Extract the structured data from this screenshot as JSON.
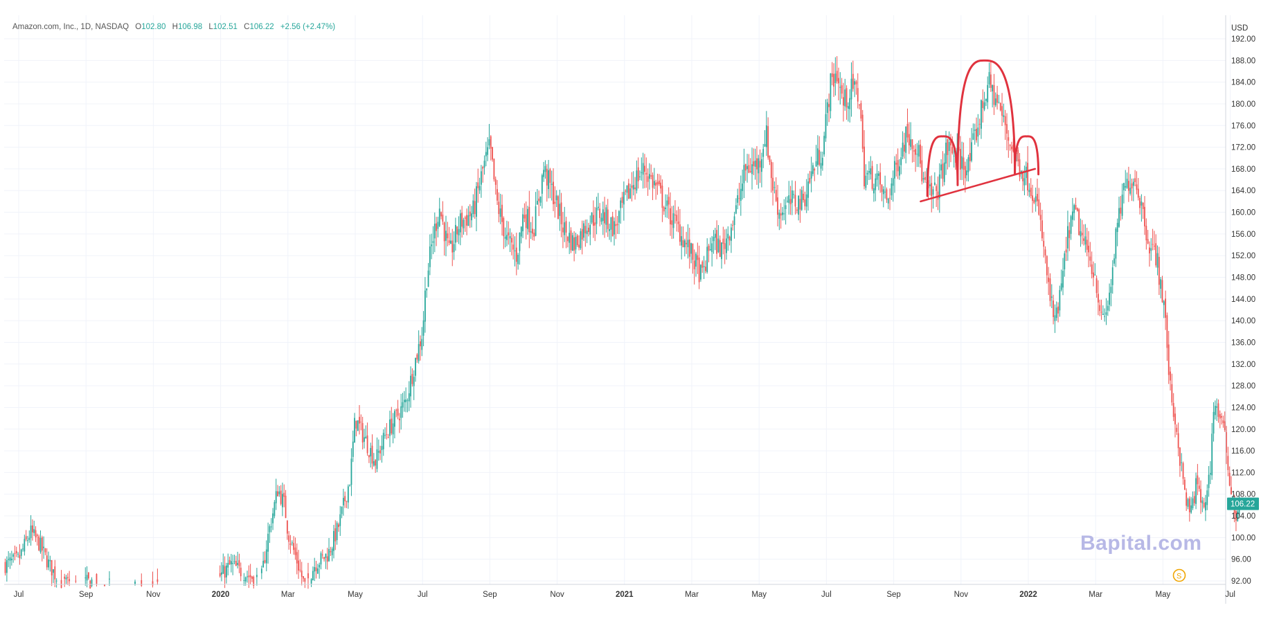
{
  "legend": {
    "symbol": "Amazon.com, Inc., 1D, NASDAQ",
    "open_label": "O",
    "open": "102.80",
    "high_label": "H",
    "high": "106.98",
    "low_label": "L",
    "low": "102.51",
    "close_label": "C",
    "close": "106.22",
    "change": "+2.56 (+2.47%)"
  },
  "watermark": "Bapital.com",
  "colors": {
    "up": "#26a69a",
    "down": "#ef5350",
    "pattern": "#e0323e",
    "grid": "#f0f3fa",
    "accent": "#26a69a"
  },
  "chart_data": {
    "type": "candlestick",
    "title": "",
    "ylabel": "USD",
    "ylim": [
      90,
      194
    ],
    "y_ticks": [
      92,
      96,
      100,
      104,
      108,
      112,
      116,
      120,
      124,
      128,
      132,
      136,
      140,
      144,
      148,
      152,
      156,
      160,
      164,
      168,
      172,
      176,
      180,
      184,
      188,
      192
    ],
    "x_ticks": [
      {
        "label": "Jul",
        "t": 0,
        "bold": false
      },
      {
        "label": "Sep",
        "t": 2,
        "bold": false
      },
      {
        "label": "Nov",
        "t": 4,
        "bold": false
      },
      {
        "label": "2020",
        "t": 6,
        "bold": true
      },
      {
        "label": "Mar",
        "t": 8,
        "bold": false
      },
      {
        "label": "May",
        "t": 10,
        "bold": false
      },
      {
        "label": "Jul",
        "t": 12,
        "bold": false
      },
      {
        "label": "Sep",
        "t": 14,
        "bold": false
      },
      {
        "label": "Nov",
        "t": 16,
        "bold": false
      },
      {
        "label": "2021",
        "t": 18,
        "bold": true
      },
      {
        "label": "Mar",
        "t": 20,
        "bold": false
      },
      {
        "label": "May",
        "t": 22,
        "bold": false
      },
      {
        "label": "Jul",
        "t": 24,
        "bold": false
      },
      {
        "label": "Sep",
        "t": 26,
        "bold": false
      },
      {
        "label": "Nov",
        "t": 28,
        "bold": false
      },
      {
        "label": "2022",
        "t": 30,
        "bold": true
      },
      {
        "label": "Mar",
        "t": 32,
        "bold": false
      },
      {
        "label": "May",
        "t": 34,
        "bold": false
      },
      {
        "label": "Jul",
        "t": 36,
        "bold": false
      }
    ],
    "price_path": [
      [
        -0.4,
        95
      ],
      [
        0.0,
        96
      ],
      [
        0.35,
        101
      ],
      [
        0.6,
        99
      ],
      [
        0.9,
        95
      ],
      [
        1.2,
        92
      ],
      [
        1.6,
        91
      ],
      [
        2.2,
        92
      ],
      [
        2.7,
        91
      ],
      [
        3.5,
        90.5
      ],
      [
        4.5,
        90.5
      ],
      [
        5.5,
        90.5
      ],
      [
        6.0,
        93
      ],
      [
        6.3,
        95
      ],
      [
        6.8,
        93
      ],
      [
        7.2,
        92
      ],
      [
        7.4,
        100
      ],
      [
        7.7,
        109
      ],
      [
        7.9,
        106
      ],
      [
        8.0,
        101
      ],
      [
        8.3,
        95
      ],
      [
        8.5,
        91
      ],
      [
        8.8,
        95
      ],
      [
        9.2,
        97
      ],
      [
        9.5,
        102
      ],
      [
        9.85,
        111
      ],
      [
        10.0,
        122
      ],
      [
        10.3,
        118
      ],
      [
        10.6,
        114
      ],
      [
        10.9,
        119
      ],
      [
        11.2,
        122
      ],
      [
        11.5,
        125
      ],
      [
        11.8,
        133
      ],
      [
        12.0,
        138
      ],
      [
        12.1,
        147
      ],
      [
        12.3,
        155
      ],
      [
        12.5,
        161
      ],
      [
        12.8,
        152
      ],
      [
        13.1,
        158
      ],
      [
        13.5,
        160
      ],
      [
        13.8,
        168
      ],
      [
        14.0,
        172
      ],
      [
        14.2,
        162
      ],
      [
        14.5,
        155
      ],
      [
        14.8,
        152
      ],
      [
        15.0,
        160
      ],
      [
        15.3,
        157
      ],
      [
        15.6,
        168
      ],
      [
        15.9,
        163
      ],
      [
        16.2,
        157
      ],
      [
        16.5,
        154
      ],
      [
        16.9,
        158
      ],
      [
        17.3,
        160
      ],
      [
        17.7,
        157
      ],
      [
        18.0,
        162
      ],
      [
        18.3,
        166
      ],
      [
        18.6,
        168
      ],
      [
        19.0,
        164
      ],
      [
        19.3,
        160
      ],
      [
        19.6,
        157
      ],
      [
        20.0,
        152
      ],
      [
        20.3,
        148
      ],
      [
        20.6,
        155
      ],
      [
        20.9,
        153
      ],
      [
        21.3,
        160
      ],
      [
        21.6,
        168
      ],
      [
        22.0,
        169
      ],
      [
        22.2,
        175
      ],
      [
        22.4,
        165
      ],
      [
        22.6,
        160
      ],
      [
        23.0,
        162
      ],
      [
        23.3,
        162
      ],
      [
        23.6,
        168
      ],
      [
        23.9,
        172
      ],
      [
        24.1,
        183
      ],
      [
        24.3,
        186
      ],
      [
        24.5,
        180
      ],
      [
        24.8,
        183
      ],
      [
        25.0,
        181
      ],
      [
        25.1,
        167
      ],
      [
        25.5,
        166
      ],
      [
        25.8,
        162
      ],
      [
        26.1,
        169
      ],
      [
        26.4,
        175
      ],
      [
        26.7,
        172
      ],
      [
        26.9,
        165
      ],
      [
        27.1,
        163
      ],
      [
        27.3,
        164
      ],
      [
        27.6,
        172
      ],
      [
        27.9,
        170
      ],
      [
        28.2,
        168
      ],
      [
        28.5,
        176
      ],
      [
        28.8,
        184
      ],
      [
        29.1,
        180
      ],
      [
        29.4,
        174
      ],
      [
        29.7,
        169
      ],
      [
        30.0,
        166
      ],
      [
        30.2,
        163
      ],
      [
        30.4,
        156
      ],
      [
        30.6,
        146
      ],
      [
        30.8,
        139
      ],
      [
        31.0,
        147
      ],
      [
        31.2,
        157
      ],
      [
        31.4,
        160
      ],
      [
        31.6,
        155
      ],
      [
        31.8,
        152
      ],
      [
        32.0,
        148
      ],
      [
        32.2,
        139
      ],
      [
        32.4,
        144
      ],
      [
        32.6,
        155
      ],
      [
        32.8,
        163
      ],
      [
        33.0,
        166
      ],
      [
        33.2,
        166
      ],
      [
        33.4,
        160
      ],
      [
        33.6,
        154
      ],
      [
        33.8,
        152
      ],
      [
        34.0,
        144
      ],
      [
        34.1,
        138
      ],
      [
        34.2,
        128
      ],
      [
        34.4,
        120
      ],
      [
        34.6,
        110
      ],
      [
        34.8,
        104
      ],
      [
        35.0,
        110
      ],
      [
        35.2,
        105
      ],
      [
        35.4,
        112
      ],
      [
        35.5,
        124
      ],
      [
        35.6,
        124
      ],
      [
        35.8,
        120
      ],
      [
        36.0,
        110
      ],
      [
        36.15,
        104
      ],
      [
        36.3,
        106
      ]
    ],
    "neckline": [
      [
        26.8,
        162
      ],
      [
        30.2,
        168
      ]
    ],
    "pattern_arches": [
      {
        "from": [
          27.0,
          163
        ],
        "peak": [
          27.45,
          174
        ],
        "to": [
          27.9,
          165
        ]
      },
      {
        "from": [
          27.9,
          166
        ],
        "peak": [
          28.7,
          188
        ],
        "to": [
          29.6,
          167
        ]
      },
      {
        "from": [
          29.6,
          167
        ],
        "peak": [
          29.95,
          174
        ],
        "to": [
          30.3,
          167
        ]
      }
    ],
    "last_price": "106.22",
    "last_price_value": 106.22
  }
}
